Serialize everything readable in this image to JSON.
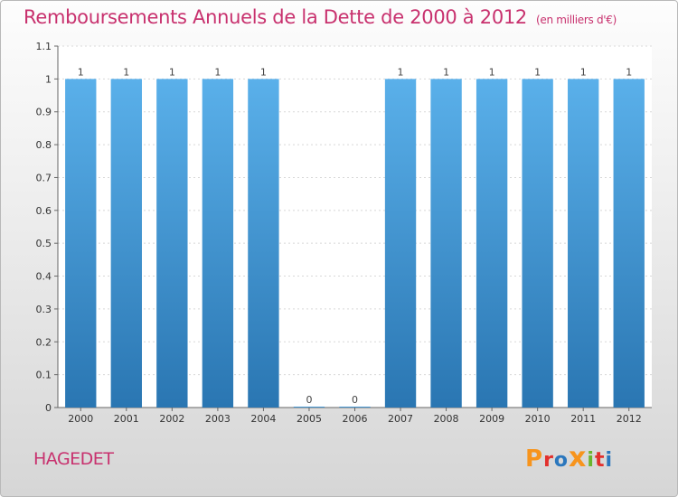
{
  "header": {
    "title": "Remboursements Annuels de la Dette de 2000 à 2012",
    "unit": "(en milliers d'€)"
  },
  "footer": {
    "commune": "HAGEDET",
    "brand": "Proxiti",
    "brand_colors": [
      "#f7941d",
      "#e2302d",
      "#2b77bd",
      "#f7941d",
      "#6ab42d",
      "#e2302d",
      "#2b77bd"
    ]
  },
  "colors": {
    "bar_top": "#5ab0ea",
    "bar_bottom": "#2a76b2",
    "accent": "#c8316e"
  },
  "chart_data": {
    "type": "bar",
    "title": "Remboursements Annuels de la Dette de 2000 à 2012",
    "xlabel": "",
    "ylabel": "",
    "categories": [
      "2000",
      "2001",
      "2002",
      "2003",
      "2004",
      "2005",
      "2006",
      "2007",
      "2008",
      "2009",
      "2010",
      "2011",
      "2012"
    ],
    "values": [
      1,
      1,
      1,
      1,
      1,
      0,
      0,
      1,
      1,
      1,
      1,
      1,
      1
    ],
    "value_labels": [
      "1",
      "1",
      "1",
      "1",
      "1",
      "0",
      "0",
      "1",
      "1",
      "1",
      "1",
      "1",
      "1"
    ],
    "ylim": [
      0,
      1.1
    ],
    "yticks": [
      0,
      0.1,
      0.2,
      0.3,
      0.4,
      0.5,
      0.6,
      0.7,
      0.8,
      0.9,
      1,
      1.1
    ],
    "ytick_labels": [
      "0",
      "0.1",
      "0.2",
      "0.3",
      "0.4",
      "0.5",
      "0.6",
      "0.7",
      "0.8",
      "0.9",
      "1",
      "1.1"
    ],
    "grid": true
  }
}
